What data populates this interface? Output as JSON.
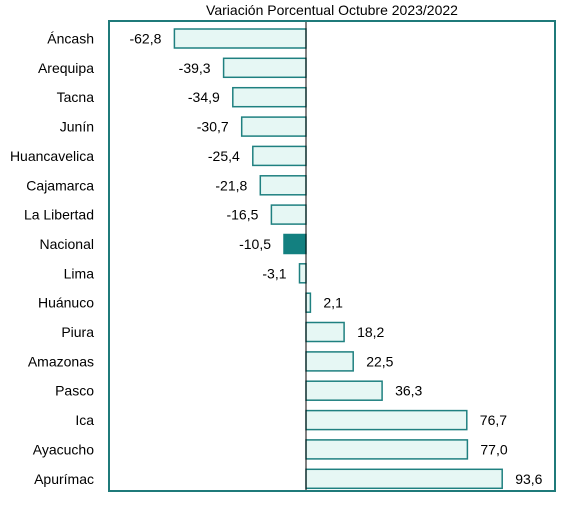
{
  "chart_data": {
    "type": "bar",
    "orientation": "horizontal",
    "title": "Variación Porcentual Octubre 2023/2022",
    "categories": [
      "Áncash",
      "Arequipa",
      "Tacna",
      "Junín",
      "Huancavelica",
      "Cajamarca",
      "La Libertad",
      "Nacional",
      "Lima",
      "Huánuco",
      "Piura",
      "Amazonas",
      "Pasco",
      "Ica",
      "Ayacucho",
      "Apurímac"
    ],
    "values": [
      -62.8,
      -39.3,
      -34.9,
      -30.7,
      -25.4,
      -21.8,
      -16.5,
      -10.5,
      -3.1,
      2.1,
      18.2,
      22.5,
      36.3,
      76.7,
      77.0,
      93.6
    ],
    "value_labels": [
      "-62,8",
      "-39,3",
      "-34,9",
      "-30,7",
      "-25,4",
      "-21,8",
      "-16,5",
      "-10,5",
      "-3,1",
      "2,1",
      "18,2",
      "22,5",
      "36,3",
      "76,7",
      "77,0",
      "93,6"
    ],
    "highlight": "Nacional",
    "xlim": [
      -62.8,
      93.6
    ],
    "grid": false,
    "legend": "none",
    "colors": {
      "bar_fill": "#e6f7f4",
      "bar_stroke": "#1f8080",
      "highlight_fill": "#138080",
      "frame": "#1f7a7a",
      "text": "#000000"
    }
  }
}
